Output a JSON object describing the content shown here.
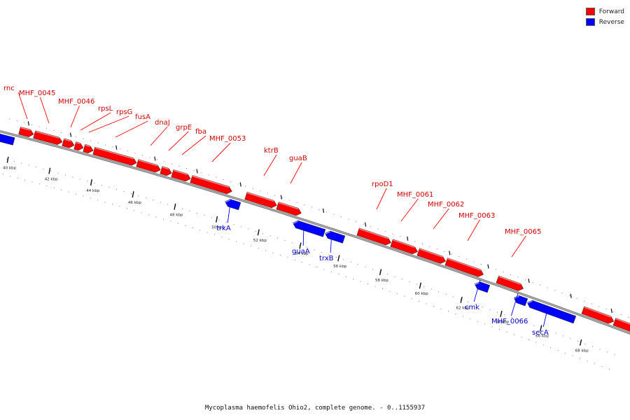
{
  "legend": {
    "forward": {
      "label": "Forward",
      "color": "#ff0000"
    },
    "reverse": {
      "label": "Reverse",
      "color": "#0000ff"
    }
  },
  "caption": "Mycoplasma haemofelis Ohio2, complete genome. - 0..1155937",
  "ticks": [
    "40 kbp",
    "42 kbp",
    "44 kbp",
    "46 kbp",
    "48 kbp",
    "50 kbp",
    "52 kbp",
    "54 kbp",
    "56 kbp",
    "58 kbp",
    "60 kbp",
    "62 kbp",
    "64 kbp",
    "66 kbp",
    "68 kbp"
  ],
  "forward_genes": [
    {
      "name": "rnc"
    },
    {
      "name": "MHF_0045"
    },
    {
      "name": "MHF_0046"
    },
    {
      "name": "rpsL"
    },
    {
      "name": "rpsG"
    },
    {
      "name": "fusA"
    },
    {
      "name": "dnaJ"
    },
    {
      "name": "grpE"
    },
    {
      "name": "fba"
    },
    {
      "name": "MHF_0053"
    },
    {
      "name": "ktrB"
    },
    {
      "name": "guaB"
    },
    {
      "name": "rpoD1"
    },
    {
      "name": "MHF_0061"
    },
    {
      "name": "MHF_0062"
    },
    {
      "name": "MHF_0063"
    },
    {
      "name": "MHF_0065"
    }
  ],
  "reverse_genes": [
    {
      "name": "trkA"
    },
    {
      "name": "guaA"
    },
    {
      "name": "trxB"
    },
    {
      "name": "cmk"
    },
    {
      "name": "MHF_0066"
    },
    {
      "name": "secA"
    }
  ]
}
